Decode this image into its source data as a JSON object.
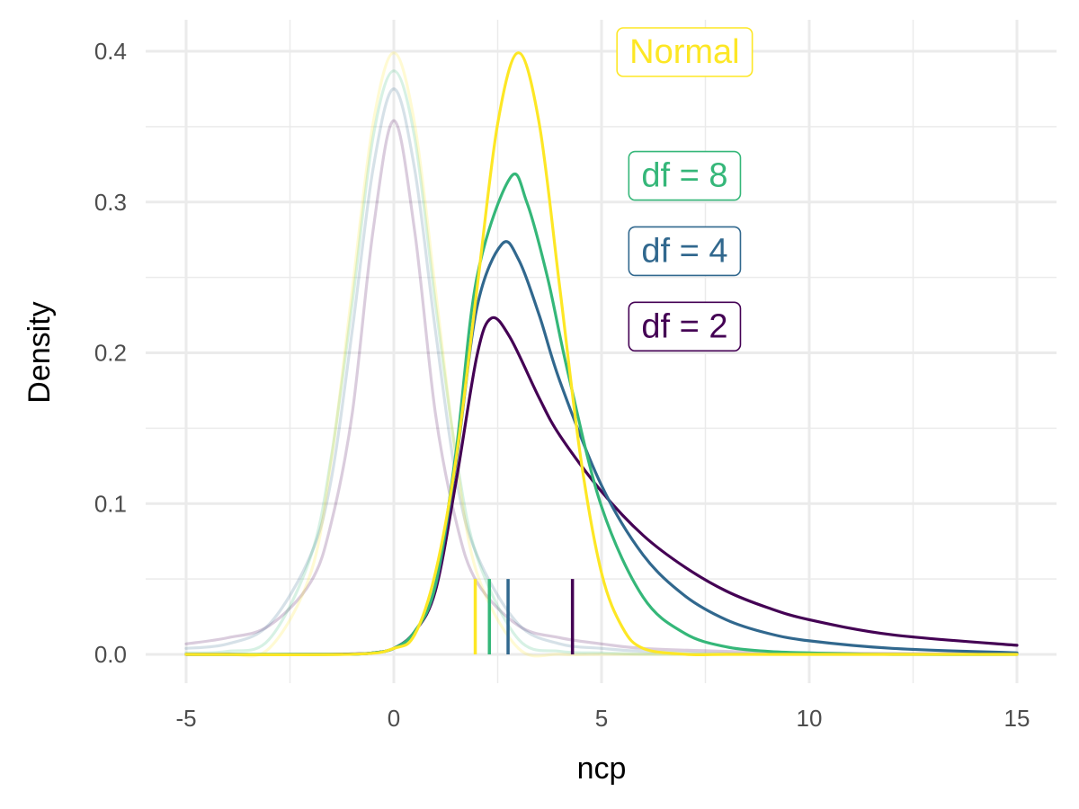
{
  "chart_data": {
    "type": "line",
    "xlabel": "ncp",
    "ylabel": "Density",
    "xlim": [
      -5,
      15
    ],
    "ylim": [
      0,
      0.4
    ],
    "x_ticks": [
      -5,
      0,
      5,
      10,
      15
    ],
    "x_tick_labels": [
      "-5",
      "0",
      "5",
      "10",
      "15"
    ],
    "y_ticks": [
      0,
      0.1,
      0.2,
      0.3,
      0.4
    ],
    "y_tick_labels": [
      "0.0",
      "0.1",
      "0.2",
      "0.3",
      "0.4"
    ],
    "grid": true,
    "series": [
      {
        "name": "df = 2",
        "color": "#440154",
        "center": 0,
        "faded": true,
        "x": [
          -5,
          -4,
          -3,
          -2,
          -1.5,
          -1,
          -0.5,
          0,
          0.5,
          1,
          1.5,
          2,
          3,
          4,
          5,
          6,
          8,
          10,
          15
        ],
        "y": [
          0.007,
          0.011,
          0.019,
          0.048,
          0.088,
          0.16,
          0.281,
          0.354,
          0.281,
          0.16,
          0.088,
          0.048,
          0.019,
          0.011,
          0.007,
          0.004,
          0.002,
          0.001,
          0.0003
        ]
      },
      {
        "name": "df = 4",
        "color": "#31688E",
        "center": 0,
        "faded": true,
        "x": [
          -5,
          -4,
          -3,
          -2,
          -1.5,
          -1,
          -0.5,
          0,
          0.5,
          1,
          1.5,
          2,
          3,
          4,
          5,
          6,
          8,
          10,
          15
        ],
        "y": [
          0.004,
          0.007,
          0.02,
          0.066,
          0.117,
          0.215,
          0.322,
          0.375,
          0.322,
          0.215,
          0.117,
          0.066,
          0.02,
          0.007,
          0.004,
          0.002,
          0.0005,
          0.0002,
          0.0001
        ]
      },
      {
        "name": "df = 8",
        "color": "#35B779",
        "center": 0,
        "faded": true,
        "x": [
          -5,
          -4,
          -3,
          -2,
          -1.5,
          -1,
          -0.5,
          0,
          0.5,
          1,
          1.5,
          2,
          3,
          4,
          5,
          6,
          8,
          10,
          15
        ],
        "y": [
          0.001,
          0.002,
          0.01,
          0.065,
          0.132,
          0.233,
          0.343,
          0.387,
          0.343,
          0.233,
          0.132,
          0.065,
          0.01,
          0.002,
          0.001,
          0.0002,
          0.0001,
          0,
          0
        ]
      },
      {
        "name": "Normal",
        "color": "#FDE725",
        "center": 0,
        "faded": true,
        "x": [
          -5,
          -4,
          -3,
          -2,
          -1.5,
          -1,
          -0.5,
          0,
          0.5,
          1,
          1.5,
          2,
          3,
          4,
          5,
          6,
          8,
          10,
          15
        ],
        "y": [
          0,
          0.0001,
          0.004,
          0.054,
          0.13,
          0.242,
          0.352,
          0.399,
          0.352,
          0.242,
          0.13,
          0.054,
          0.004,
          0.0001,
          0,
          0,
          0,
          0,
          0
        ]
      },
      {
        "name": "df = 2",
        "color": "#440154",
        "center": 4.3,
        "faded": false,
        "x": [
          -5,
          -2,
          -1,
          -0.5,
          0,
          0.5,
          1,
          1.5,
          2,
          2.35,
          2.8,
          3.5,
          4,
          5,
          6,
          7,
          8,
          9,
          10,
          12,
          15
        ],
        "y": [
          0,
          0,
          0.0003,
          0.001,
          0.004,
          0.015,
          0.042,
          0.115,
          0.198,
          0.223,
          0.21,
          0.17,
          0.145,
          0.108,
          0.079,
          0.058,
          0.042,
          0.031,
          0.023,
          0.013,
          0.006
        ]
      },
      {
        "name": "df = 4",
        "color": "#31688E",
        "center": 2.75,
        "faded": false,
        "x": [
          -5,
          -2,
          -1,
          -0.5,
          0,
          0.5,
          1,
          1.5,
          2,
          2.6,
          3,
          3.5,
          4,
          5,
          6,
          7,
          8,
          9,
          10,
          12,
          15
        ],
        "y": [
          0,
          0,
          0.0002,
          0.001,
          0.004,
          0.015,
          0.045,
          0.128,
          0.23,
          0.272,
          0.262,
          0.225,
          0.181,
          0.112,
          0.066,
          0.039,
          0.023,
          0.014,
          0.009,
          0.004,
          0.001
        ]
      },
      {
        "name": "df = 8",
        "color": "#35B779",
        "center": 2.3,
        "faded": false,
        "x": [
          -5,
          -2,
          -1,
          -0.5,
          0,
          0.5,
          1,
          1.5,
          2,
          2.8,
          3.2,
          3.7,
          4.2,
          5,
          6,
          7,
          8,
          9,
          10,
          12,
          15
        ],
        "y": [
          0,
          0,
          0.0001,
          0.001,
          0.004,
          0.015,
          0.046,
          0.135,
          0.25,
          0.316,
          0.3,
          0.25,
          0.186,
          0.098,
          0.038,
          0.014,
          0.005,
          0.002,
          0.001,
          0,
          0
        ]
      },
      {
        "name": "Normal",
        "color": "#FDE725",
        "center": 1.96,
        "faded": false,
        "x": [
          -5,
          -1,
          0,
          0.5,
          1,
          1.5,
          2,
          2.5,
          3,
          3.5,
          4,
          4.5,
          5,
          5.5,
          6,
          7,
          8,
          10,
          15
        ],
        "y": [
          0,
          0.0001,
          0.004,
          0.013,
          0.054,
          0.13,
          0.242,
          0.352,
          0.399,
          0.352,
          0.242,
          0.13,
          0.054,
          0.018,
          0.004,
          0.0001,
          0,
          0,
          0
        ]
      }
    ],
    "labels": [
      {
        "text": "Normal",
        "color": "#FDE725",
        "x": 7.0,
        "y": 0.4
      },
      {
        "text": "df = 8",
        "color": "#35B779",
        "x": 7.0,
        "y": 0.318
      },
      {
        "text": "df = 4",
        "color": "#31688E",
        "x": 7.0,
        "y": 0.268
      },
      {
        "text": "df = 2",
        "color": "#440154",
        "x": 7.0,
        "y": 0.218
      }
    ]
  }
}
